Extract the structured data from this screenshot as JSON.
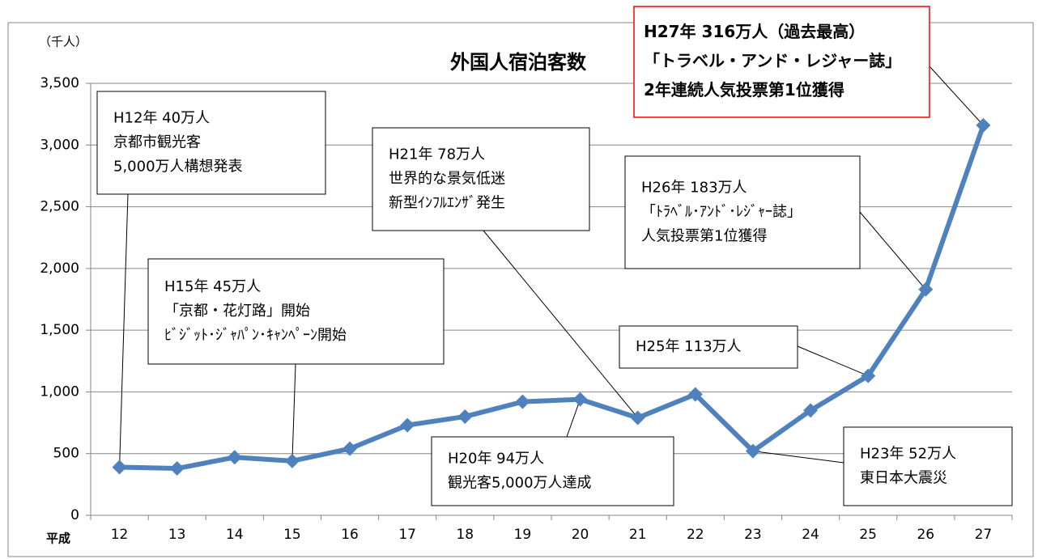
{
  "chart_data": {
    "type": "line",
    "title": "外国人宿泊客数",
    "y_label": "（千人）",
    "x_label": "平成",
    "categories": [
      "12",
      "13",
      "14",
      "15",
      "16",
      "17",
      "18",
      "19",
      "20",
      "21",
      "22",
      "23",
      "24",
      "25",
      "26",
      "27"
    ],
    "series": [
      {
        "name": "外国人宿泊客数",
        "color": "#4f81bd",
        "values": [
          390,
          380,
          470,
          440,
          540,
          730,
          800,
          920,
          940,
          790,
          980,
          520,
          850,
          1130,
          1830,
          3160
        ]
      }
    ],
    "ylim": [
      0,
      3500
    ],
    "yticks": [
      0,
      500,
      {
        "value": 1000,
        "label": "1,000"
      },
      {
        "value": 1500,
        "label": "1,500"
      },
      {
        "value": 2000,
        "label": "2,000"
      },
      {
        "value": 2500,
        "label": "2,500"
      },
      {
        "value": 3000,
        "label": "3,000"
      },
      {
        "value": 3500,
        "label": "3,500"
      }
    ],
    "grid": true,
    "annotations": [
      {
        "lines": [
          "H12年 40万人",
          "京都市観光客",
          "5,000万人構想発表"
        ],
        "color": "#000000"
      },
      {
        "lines": [
          "H15年 45万人",
          "「京都・花灯路」開始",
          "ﾋﾞｼﾞｯﾄ･ｼﾞｬﾊﾟﾝ･ｷｬﾝﾍﾟｰﾝ開始"
        ],
        "color": "#000000"
      },
      {
        "lines": [
          "H21年 78万人",
          "世界的な景気低迷",
          "新型ｲﾝﾌﾙｴﾝｻﾞ発生"
        ],
        "color": "#000000"
      },
      {
        "lines": [
          "H20年 94万人",
          "観光客5,000万人達成"
        ],
        "color": "#000000"
      },
      {
        "lines": [
          "H26年  183万人",
          "「ﾄﾗﾍﾞﾙ･ｱﾝﾄﾞ･ﾚｼﾞｬｰ誌」",
          "人気投票第1位獲得"
        ],
        "color": "#000000"
      },
      {
        "lines": [
          "H25年  113万人"
        ],
        "color": "#000000"
      },
      {
        "lines": [
          "H23年  52万人",
          "東日本大震災"
        ],
        "color": "#000000"
      },
      {
        "lines": [
          "H27年  316万人（過去最高）",
          "「トラベル・アンド・レジャー誌」",
          "2年連続人気投票第1位獲得"
        ],
        "color": "#ff0000"
      }
    ]
  }
}
